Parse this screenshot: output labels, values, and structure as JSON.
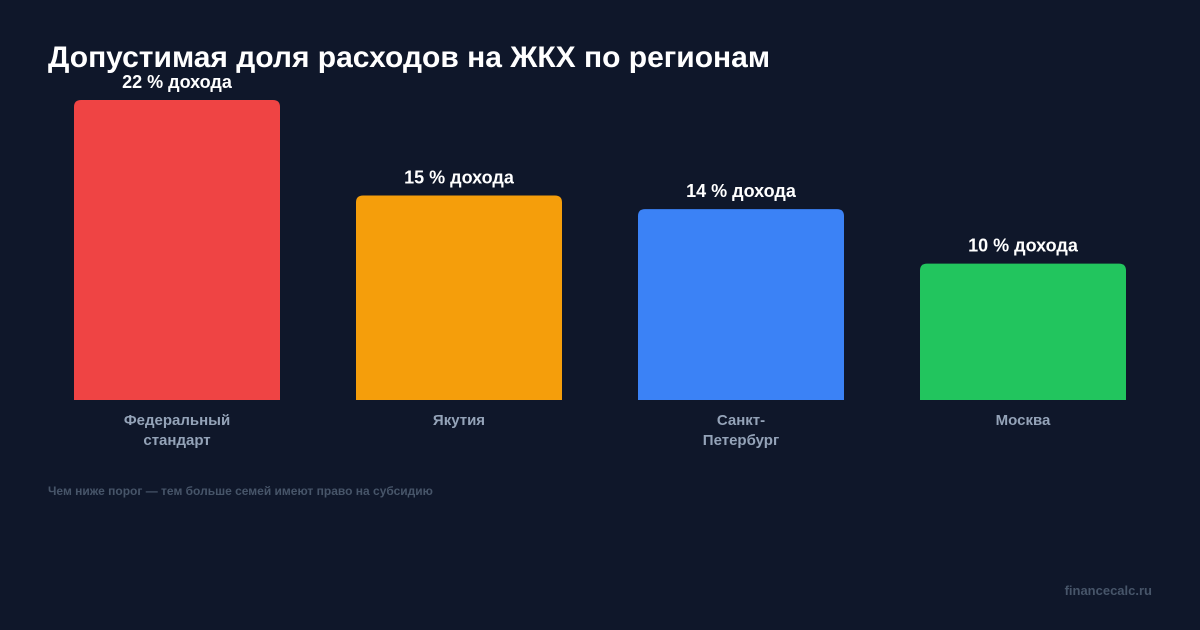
{
  "chart_data": {
    "type": "bar",
    "title": "Допустимая доля расходов на ЖКХ по регионам",
    "categories": [
      [
        "Федеральный",
        "стандарт"
      ],
      [
        "Якутия"
      ],
      [
        "Санкт-",
        "Петербург"
      ],
      [
        "Москва"
      ]
    ],
    "values": [
      22,
      15,
      14,
      10
    ],
    "value_labels": [
      "22 % дохода",
      "15 % дохода",
      "14 % дохода",
      "10 % дохода"
    ],
    "colors": [
      "#ef4444",
      "#f59e0b",
      "#3b82f6",
      "#22c55e"
    ],
    "ylim": [
      0,
      22
    ],
    "grid": false,
    "legend": "none"
  },
  "footnote": "Чем ниже порог — тем больше семей имеют право на субсидию",
  "brand": "financecalc.ru",
  "colors": {
    "background": "#0f172a",
    "title": "#ffffff",
    "category_label": "#94a3b8",
    "note": "#475569"
  }
}
